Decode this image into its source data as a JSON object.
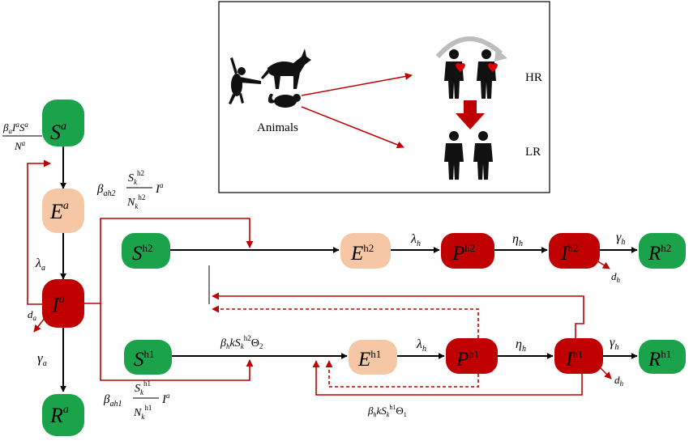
{
  "colors": {
    "susceptible": "#1aa34a",
    "exposed": "#f6c7a5",
    "presymptomatic": "#c00000",
    "infected": "#c00000",
    "arrow_red": "#c00000",
    "arrow_black": "#000000"
  },
  "inset": {
    "animals_label": "Animals",
    "hr_label": "HR",
    "lr_label": "LR",
    "icons": [
      "monkey-icon",
      "dog-icon",
      "rat-icon",
      "person-icon",
      "heart-icon",
      "down-arrow-icon"
    ]
  },
  "animal_chain": {
    "S": {
      "base": "S",
      "sup": "a"
    },
    "E": {
      "base": "E",
      "sup": "a"
    },
    "I": {
      "base": "I",
      "sup": "a"
    },
    "R": {
      "base": "R",
      "sup": "a"
    },
    "inflow": {
      "num": "β",
      "num_sub": "a",
      "num_rest": "I",
      "num_sup": "a",
      "num_S": "S",
      "num_S_sup": "a",
      "den": "N",
      "den_sup": "a"
    },
    "lambda": {
      "base": "λ",
      "sub": "a"
    },
    "gamma": {
      "base": "γ",
      "sub": "a"
    },
    "death": {
      "base": "d",
      "sub": "a"
    }
  },
  "human_chain_2": {
    "S": {
      "base": "S",
      "sup": "h2"
    },
    "E": {
      "base": "E",
      "sup": "h2"
    },
    "P": {
      "base": "P",
      "sup": "h2"
    },
    "I": {
      "base": "I",
      "sup": "h2"
    },
    "R": {
      "base": "R",
      "sup": "h2"
    },
    "lambda": {
      "base": "λ",
      "sub": "h"
    },
    "eta": {
      "base": "η",
      "sub": "h"
    },
    "gamma": {
      "base": "γ",
      "sub": "h"
    },
    "death": {
      "base": "d",
      "sub": "h"
    },
    "spill": {
      "beta": "β",
      "beta_sub": "ah2",
      "num": "S",
      "num_sub": "k",
      "num_sup": "h2",
      "den": "N",
      "den_sub": "k",
      "den_sup": "h2",
      "I": "I",
      "I_sup": "a"
    }
  },
  "human_chain_1": {
    "S": {
      "base": "S",
      "sup": "h1"
    },
    "E": {
      "base": "E",
      "sup": "h1"
    },
    "P": {
      "base": "P",
      "sup": "h1"
    },
    "I": {
      "base": "I",
      "sup": "h1"
    },
    "R": {
      "base": "R",
      "sup": "h1"
    },
    "lambda": {
      "base": "λ",
      "sub": "h"
    },
    "eta": {
      "base": "η",
      "sub": "h"
    },
    "gamma": {
      "base": "γ",
      "sub": "h"
    },
    "death": {
      "base": "d",
      "sub": "h"
    },
    "spill": {
      "beta": "β",
      "beta_sub": "ah1",
      "num": "S",
      "num_sub": "k",
      "num_sup": "h1",
      "den": "N",
      "den_sub": "k",
      "den_sup": "h1",
      "I": "I",
      "I_sup": "a"
    },
    "transmission_upper": {
      "beta": "β",
      "beta_sub": "h",
      "k": "k",
      "S": "S",
      "S_sub": "k",
      "S_sup": "h2",
      "theta": "Θ",
      "theta_sub": "2"
    },
    "transmission_lower": {
      "beta": "β",
      "beta_sub": "h",
      "k": "k",
      "S": "S",
      "S_sub": "k",
      "S_sup": "h1",
      "theta": "Θ",
      "theta_sub": "1"
    }
  }
}
